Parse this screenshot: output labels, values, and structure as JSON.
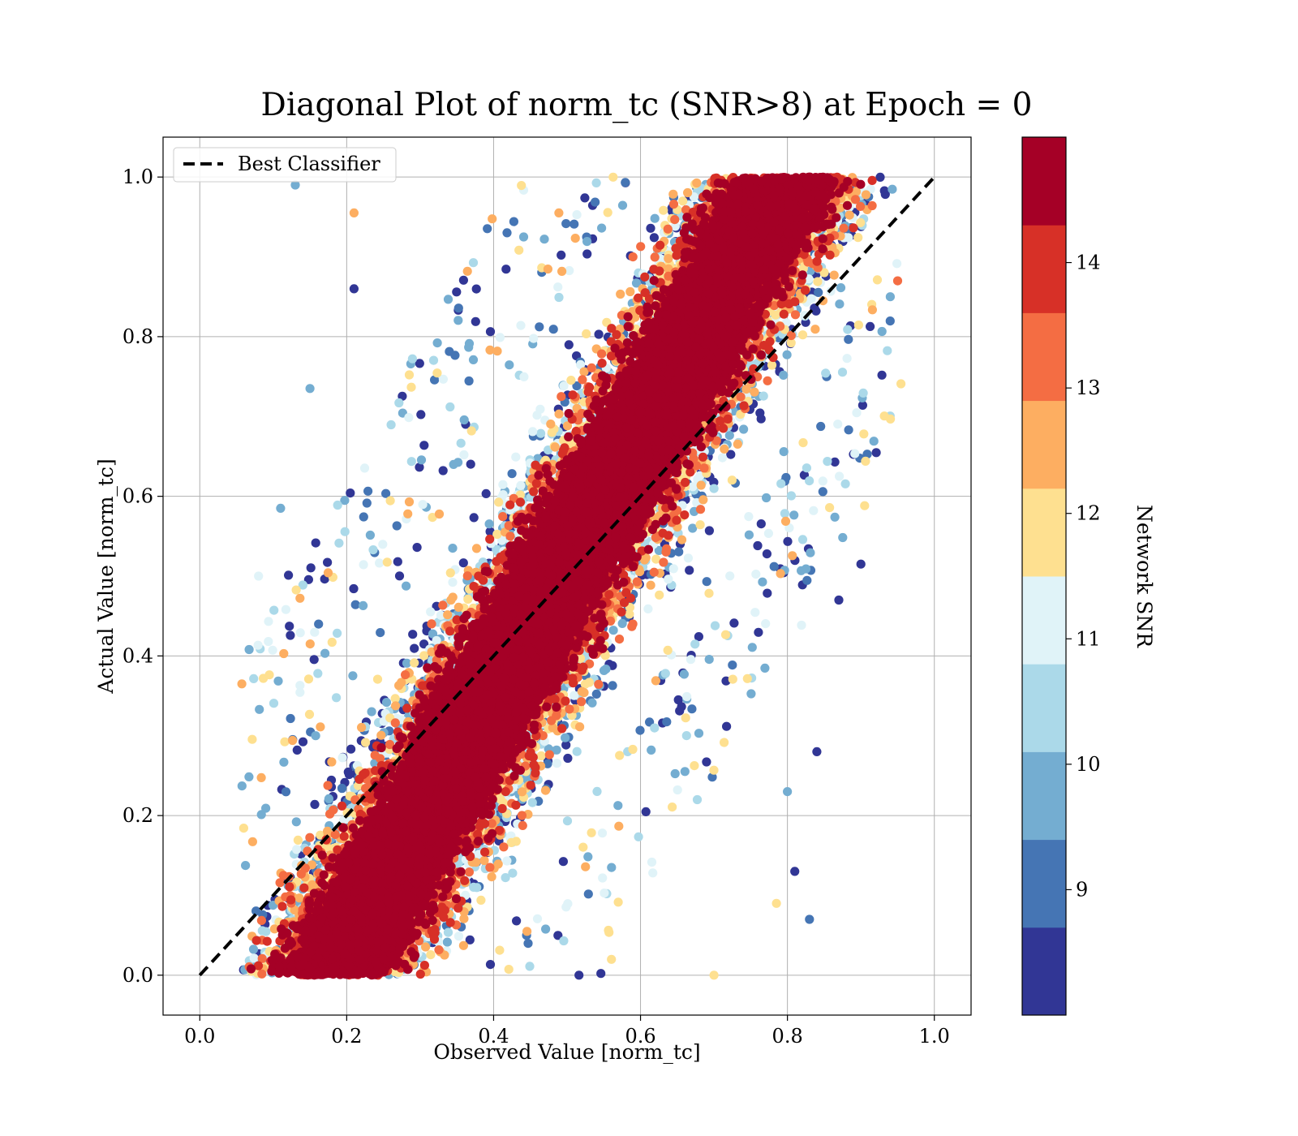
{
  "chart_data": {
    "type": "scatter",
    "title": "Diagonal Plot of norm_tc (SNR>8) at Epoch = 0",
    "xlabel": "Observed Value [norm_tc]",
    "ylabel": "Actual Value [norm_tc]",
    "xlim": [
      -0.05,
      1.05
    ],
    "ylim": [
      -0.05,
      1.05
    ],
    "xticks": [
      "0.0",
      "0.2",
      "0.4",
      "0.6",
      "0.8",
      "1.0"
    ],
    "yticks": [
      "0.0",
      "0.2",
      "0.4",
      "0.6",
      "0.8",
      "1.0"
    ],
    "grid": true,
    "legend": {
      "position": "upper-left",
      "entries": [
        {
          "label": "Best Classifier",
          "style": "dashed",
          "color": "#000000"
        }
      ]
    },
    "reference_line": {
      "x": [
        0.0,
        1.0
      ],
      "y": [
        0.0,
        1.0
      ],
      "style": "dashed",
      "color": "#000000"
    },
    "colorbar": {
      "label": "Network SNR",
      "range": [
        8.0,
        15.0
      ],
      "ticks": [
        "9",
        "10",
        "11",
        "12",
        "13",
        "14"
      ],
      "tick_values": [
        9,
        10,
        11,
        12,
        13,
        14
      ],
      "colors": [
        "#313695",
        "#4575b4",
        "#74add1",
        "#abd9e9",
        "#e0f3f8",
        "#fee090",
        "#fdae61",
        "#f46d43",
        "#d73027",
        "#a50026"
      ]
    },
    "points_note_values": {
      "samples": [
        {
          "x": 0.13,
          "y": 0.99,
          "snr": 10.0
        },
        {
          "x": 0.21,
          "y": 0.955,
          "snr": 12.5
        },
        {
          "x": 0.21,
          "y": 0.86,
          "snr": 8.2
        },
        {
          "x": 0.15,
          "y": 0.735,
          "snr": 9.5
        },
        {
          "x": 0.11,
          "y": 0.585,
          "snr": 10.0
        },
        {
          "x": 0.08,
          "y": 0.5,
          "snr": 11.2
        },
        {
          "x": 0.9,
          "y": 0.515,
          "snr": 8.2
        },
        {
          "x": 0.87,
          "y": 0.47,
          "snr": 8.2
        },
        {
          "x": 0.84,
          "y": 0.28,
          "snr": 8.2
        },
        {
          "x": 0.8,
          "y": 0.23,
          "snr": 9.5
        },
        {
          "x": 0.81,
          "y": 0.13,
          "snr": 8.2
        },
        {
          "x": 0.83,
          "y": 0.07,
          "snr": 9.0
        },
        {
          "x": 0.785,
          "y": 0.09,
          "snr": 11.8
        },
        {
          "x": 0.7,
          "y": 0.0,
          "snr": 11.8
        },
        {
          "x": 0.95,
          "y": 0.87,
          "snr": 13.0
        },
        {
          "x": 0.94,
          "y": 0.85,
          "snr": 9.5
        }
      ]
    }
  }
}
